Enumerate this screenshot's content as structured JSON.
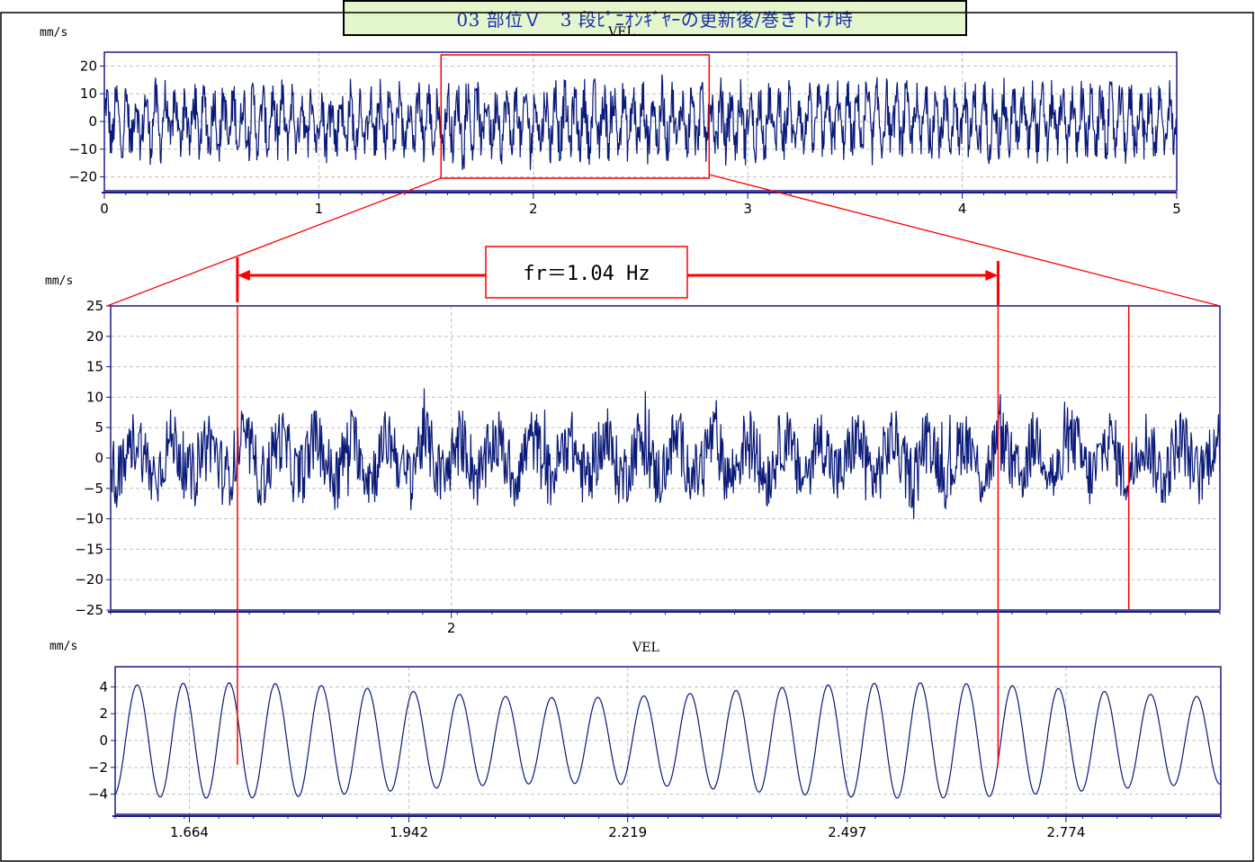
{
  "title": "03 部位Ｖ　3 段ﾋﾟﾆｵﾝｷﾞﾔｰの更新後/巻き下げ時",
  "annotation": {
    "text": "fr＝1.04 Hz",
    "frequency_hz": 1.04
  },
  "colors": {
    "signal": "#0a1a78",
    "frame": "#1a1a8a",
    "marker": "#ff0000",
    "grid": "#c0c0c0",
    "title_bg": "#e4f7cc",
    "title_text": "#1a2fa8"
  },
  "chart_data": [
    {
      "type": "line",
      "id": "overview",
      "unit_label": "mm/s",
      "title_label": "VEL",
      "x_ticks": [
        0,
        1,
        2,
        3,
        4,
        5
      ],
      "y_ticks": [
        20,
        10,
        0,
        -10,
        -20
      ],
      "xlim": [
        0,
        5
      ],
      "ylim": [
        -25,
        25
      ],
      "zoom_window_x": [
        1.57,
        2.82
      ],
      "signal": {
        "amplitude": 8,
        "noise": 9,
        "carrier_cycles_per_unit": 22
      },
      "grid": true
    },
    {
      "type": "line",
      "id": "zoom",
      "unit_label": "mm/s",
      "x_ticks": [
        2
      ],
      "y_ticks": [
        25,
        20,
        15,
        10,
        5,
        0,
        -5,
        -10,
        -15,
        -20,
        -25
      ],
      "xlim": [
        1.57,
        2.97
      ],
      "ylim": [
        -25,
        25
      ],
      "markers_x": [
        1.73,
        2.69,
        2.855
      ],
      "signal": {
        "amplitude": 3,
        "noise": 6,
        "min": -14,
        "max": 13,
        "carrier_cycles_per_unit": 22
      },
      "grid": true
    },
    {
      "type": "line",
      "id": "filtered",
      "unit_label": "mm/s",
      "title_label": "VEL",
      "x_ticks": [
        1.664,
        1.942,
        2.219,
        2.497,
        2.774
      ],
      "y_ticks": [
        4,
        2,
        0,
        -2,
        -4
      ],
      "xlim": [
        1.57,
        2.97
      ],
      "ylim": [
        -5.5,
        5.5
      ],
      "markers_x": [
        1.73,
        2.69
      ],
      "signal": {
        "cycles": 24,
        "amplitude_min": 3.2,
        "amplitude_max": 4.3
      },
      "grid": true
    }
  ]
}
